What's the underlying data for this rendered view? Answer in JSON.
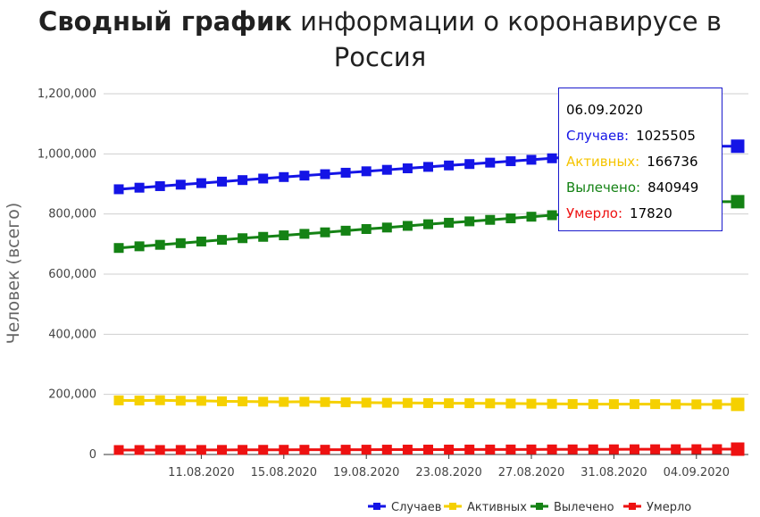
{
  "title": {
    "bold": "Сводный график",
    "rest": " информации о коронавирусе в Россия"
  },
  "chart_data": {
    "type": "line",
    "title": "Сводный график информации о коронавирусе в Россия",
    "ylabel": "Человек (всего)",
    "xlabel": "",
    "ylim": [
      0,
      1200000
    ],
    "yticks": [
      "0",
      "200,000",
      "400,000",
      "600,000",
      "800,000",
      "1,000,000",
      "1,200,000"
    ],
    "x": [
      "07.08.2020",
      "08.08.2020",
      "09.08.2020",
      "10.08.2020",
      "11.08.2020",
      "12.08.2020",
      "13.08.2020",
      "14.08.2020",
      "15.08.2020",
      "16.08.2020",
      "17.08.2020",
      "18.08.2020",
      "19.08.2020",
      "20.08.2020",
      "21.08.2020",
      "22.08.2020",
      "23.08.2020",
      "24.08.2020",
      "25.08.2020",
      "26.08.2020",
      "27.08.2020",
      "28.08.2020",
      "29.08.2020",
      "30.08.2020",
      "31.08.2020",
      "01.09.2020",
      "02.09.2020",
      "03.09.2020",
      "04.09.2020",
      "05.09.2020",
      "06.09.2020"
    ],
    "xtick_labels": [
      "11.08.2020",
      "15.08.2020",
      "19.08.2020",
      "23.08.2020",
      "27.08.2020",
      "31.08.2020",
      "04.09.2020"
    ],
    "grid": true,
    "legend_position": "bottom-right",
    "series": [
      {
        "name": "Случаев",
        "color": "#1414e6",
        "values": [
          882347,
          887536,
          892654,
          897599,
          902701,
          907758,
          912823,
          917884,
          922853,
          927745,
          932493,
          937321,
          942106,
          946976,
          951897,
          956749,
          961493,
          966189,
          970865,
          975576,
          980405,
          985346,
          990326,
          995319,
          1000048,
          1005000,
          1009995,
          1015105,
          1020310,
          1025505,
          1025505
        ]
      },
      {
        "name": "Активных",
        "color": "#f5d000",
        "values": [
          180000,
          179500,
          180500,
          179000,
          178500,
          177000,
          176500,
          175500,
          175000,
          175500,
          174500,
          173500,
          172500,
          172000,
          171500,
          171000,
          170500,
          170500,
          170000,
          169500,
          169000,
          168500,
          168000,
          167500,
          167500,
          167500,
          167500,
          167000,
          166800,
          166736,
          166736
        ]
      },
      {
        "name": "Вылечено",
        "color": "#148214",
        "values": [
          687000,
          692500,
          697500,
          703000,
          708500,
          714000,
          719500,
          724000,
          729000,
          734000,
          739000,
          744500,
          750000,
          755000,
          760500,
          766000,
          771000,
          775500,
          780500,
          785500,
          791000,
          796000,
          801000,
          806000,
          811500,
          816500,
          822000,
          827000,
          832000,
          840949,
          840949
        ]
      },
      {
        "name": "Умерло",
        "color": "#ee1111",
        "values": [
          14854,
          14931,
          15001,
          15131,
          15231,
          15353,
          15467,
          15585,
          15685,
          15784,
          15889,
          16004,
          16099,
          16189,
          16310,
          16383,
          16448,
          16524,
          16568,
          16683,
          16804,
          16914,
          17025,
          17128,
          17250,
          17365,
          17479,
          17598,
          17700,
          17820,
          17820
        ]
      }
    ]
  },
  "tooltip": {
    "date": "06.09.2020",
    "rows": [
      {
        "label": "Случаев:",
        "value": "1025505",
        "color": "#1414e6"
      },
      {
        "label": "Активных:",
        "value": "166736",
        "color": "#f5c400"
      },
      {
        "label": "Вылечено:",
        "value": "840949",
        "color": "#148214"
      },
      {
        "label": "Умерло:",
        "value": "17820",
        "color": "#ee1111"
      }
    ]
  }
}
